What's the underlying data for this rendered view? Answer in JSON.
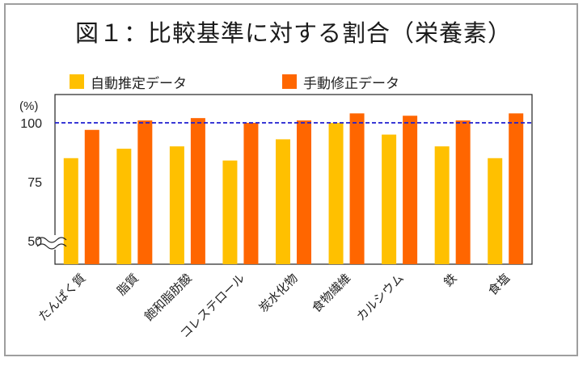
{
  "chart_data": {
    "type": "bar",
    "title": "図１：比較基準に対する割合（栄養素）",
    "ylabel": "(%)",
    "y_ticks": [
      50,
      75,
      100
    ],
    "ylim": [
      40,
      112
    ],
    "reference_line": 100,
    "axis_break": true,
    "categories": [
      "たんぱく質",
      "脂質",
      "飽和脂肪酸",
      "コレステロール",
      "炭水化物",
      "食物繊維",
      "カルシウム",
      "鉄",
      "食塩"
    ],
    "series": [
      {
        "name": "自動推定データ",
        "color": "#ffc000",
        "values": [
          85,
          89,
          90,
          84,
          93,
          100,
          95,
          90,
          85
        ]
      },
      {
        "name": "手動修正データ",
        "color": "#ff6600",
        "values": [
          97,
          101,
          102,
          100,
          101,
          104,
          103,
          101,
          104
        ]
      }
    ],
    "legend_position": "top"
  },
  "colors": {
    "reference_line": "#1f1fd1",
    "axis": "#222222",
    "frame": "#9e9e9e"
  }
}
